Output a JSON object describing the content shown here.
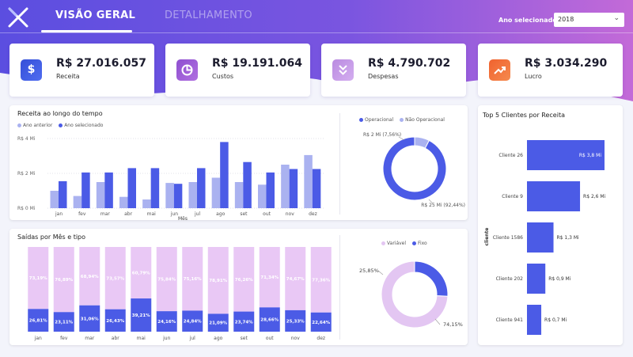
{
  "nav": {
    "tabs": [
      {
        "label": "VISÃO GERAL",
        "active": true
      },
      {
        "label": "DETALHAMENTO",
        "active": false
      }
    ],
    "year_label": "Ano selecionado:",
    "year_value": "2018"
  },
  "kpis": [
    {
      "value": "R$ 27.016.057",
      "label": "Receita",
      "icon": "dollar-icon",
      "color": "#3d59e0"
    },
    {
      "value": "R$ 19.191.064",
      "label": "Custos",
      "icon": "pie-icon",
      "color": "#9b59d0"
    },
    {
      "value": "R$ 4.790.702",
      "label": "Despesas",
      "icon": "double-chevron-down-icon",
      "color": "#c49ae6"
    },
    {
      "value": "R$ 3.034.290",
      "label": "Lucro",
      "icon": "trend-up-icon",
      "color": "#f06a3c"
    }
  ],
  "colors": {
    "primary": "#4b5be6",
    "light": "#aab2f0",
    "lavender": "#e3c6f2",
    "pink": "#e9c8f5"
  },
  "chart_data": [
    {
      "type": "bar",
      "title": "Receita ao longo do tempo",
      "xlabel": "Mês",
      "categories": [
        "jan",
        "fev",
        "mar",
        "abr",
        "mai",
        "jun",
        "jul",
        "ago",
        "set",
        "out",
        "nov",
        "dez"
      ],
      "yticks": [
        "R$ 0 Mi",
        "R$ 2 Mi",
        "R$ 4 Mi"
      ],
      "ylim": [
        0,
        4
      ],
      "series": [
        {
          "name": "Ano anterior",
          "values": [
            1.0,
            0.7,
            1.5,
            0.65,
            0.5,
            1.45,
            1.5,
            1.75,
            1.5,
            1.35,
            2.5,
            3.05
          ]
        },
        {
          "name": "Ano selecionado",
          "values": [
            1.55,
            2.05,
            2.05,
            2.3,
            2.3,
            1.4,
            2.3,
            3.8,
            2.65,
            2.05,
            2.25,
            2.25
          ]
        }
      ]
    },
    {
      "type": "pie",
      "legend": [
        "Operacional",
        "Não Operacional"
      ],
      "labels": [
        "R$ 25 Mi (92,44%)",
        "R$ 2 Mi (7,56%)"
      ],
      "values": [
        92.44,
        7.56
      ]
    },
    {
      "type": "bar",
      "title": "Saídas por Mês e tipo",
      "categories": [
        "jan",
        "fev",
        "mar",
        "abr",
        "mai",
        "jun",
        "jul",
        "ago",
        "set",
        "out",
        "nov",
        "dez"
      ],
      "series": [
        {
          "name": "Variável",
          "values": [
            73.19,
            76.89,
            68.94,
            73.57,
            60.79,
            75.84,
            75.16,
            78.91,
            76.26,
            71.34,
            74.67,
            77.36
          ],
          "labels": [
            "73,19%",
            "76,89%",
            "68,94%",
            "73,57%",
            "60,79%",
            "75,84%",
            "75,16%",
            "78,91%",
            "76,26%",
            "71,34%",
            "74,67%",
            "77,36%"
          ]
        },
        {
          "name": "Fixo",
          "values": [
            26.81,
            23.11,
            31.06,
            26.43,
            39.21,
            24.16,
            24.84,
            21.09,
            23.74,
            28.66,
            25.33,
            22.64
          ],
          "labels": [
            "26,81%",
            "23,11%",
            "31,06%",
            "26,43%",
            "39,21%",
            "24,16%",
            "24,84%",
            "21,09%",
            "23,74%",
            "28,66%",
            "25,33%",
            "22,64%"
          ]
        }
      ]
    },
    {
      "type": "pie",
      "legend": [
        "Variável",
        "Fixo"
      ],
      "labels": [
        "74,15%",
        "25,85%"
      ],
      "values": [
        74.15,
        25.85
      ]
    },
    {
      "type": "bar",
      "title": "Top 5 Clientes por Receita",
      "ylabel": "cliente",
      "categories": [
        "Cliente 26",
        "Cliente 9",
        "Cliente 1586",
        "Cliente 202",
        "Cliente 941"
      ],
      "values": [
        3.8,
        2.6,
        1.3,
        0.9,
        0.7
      ],
      "labels": [
        "R$ 3,8 Mi",
        "R$ 2,6 Mi",
        "R$ 1,3 Mi",
        "R$ 0,9 Mi",
        "R$ 0,7 Mi"
      ]
    }
  ]
}
